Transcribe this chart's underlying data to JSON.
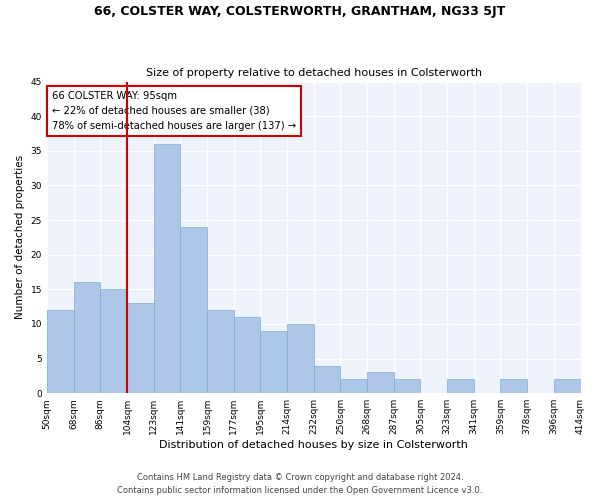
{
  "title1": "66, COLSTER WAY, COLSTERWORTH, GRANTHAM, NG33 5JT",
  "title2": "Size of property relative to detached houses in Colsterworth",
  "xlabel": "Distribution of detached houses by size in Colsterworth",
  "ylabel": "Number of detached properties",
  "footer1": "Contains HM Land Registry data © Crown copyright and database right 2024.",
  "footer2": "Contains public sector information licensed under the Open Government Licence v3.0.",
  "annotation_line1": "66 COLSTER WAY: 95sqm",
  "annotation_line2": "← 22% of detached houses are smaller (38)",
  "annotation_line3": "78% of semi-detached houses are larger (137) →",
  "bar_values": [
    12,
    16,
    15,
    13,
    36,
    24,
    12,
    11,
    9,
    10,
    4,
    2,
    3,
    2,
    0,
    2,
    0,
    2,
    0,
    2
  ],
  "bin_labels": [
    "50sqm",
    "68sqm",
    "86sqm",
    "104sqm",
    "123sqm",
    "141sqm",
    "159sqm",
    "177sqm",
    "195sqm",
    "214sqm",
    "232sqm",
    "250sqm",
    "268sqm",
    "287sqm",
    "305sqm",
    "323sqm",
    "341sqm",
    "359sqm",
    "378sqm",
    "396sqm",
    "414sqm"
  ],
  "bar_color": "#aec6e8",
  "bar_edge_color": "#7aafd4",
  "bg_color": "#eef2fa",
  "grid_color": "#ffffff",
  "vline_color": "#cc0000",
  "annotation_box_color": "#cc0000",
  "ylim": [
    0,
    45
  ],
  "yticks": [
    0,
    5,
    10,
    15,
    20,
    25,
    30,
    35,
    40,
    45
  ],
  "vline_pos": 2.5
}
